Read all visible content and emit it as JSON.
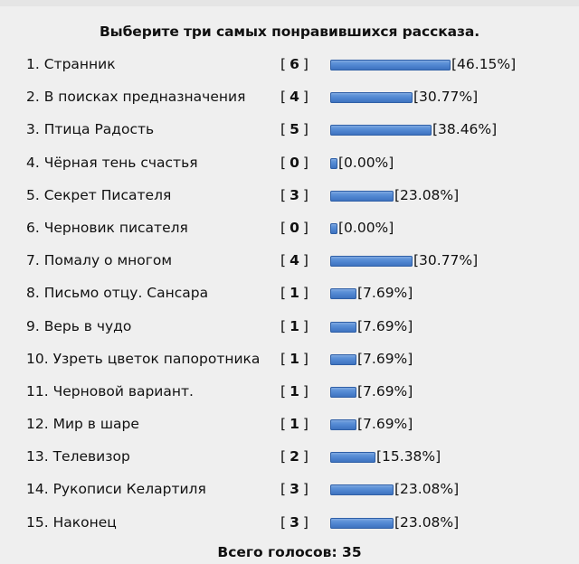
{
  "poll": {
    "title": "Выберите три самых понравившихся рассказа.",
    "total_label": "Всего голосов: 35",
    "bar_color": "#4a80cc",
    "items": [
      {
        "label": "1. Странник",
        "votes": "6",
        "percent": "[46.15%]"
      },
      {
        "label": "2. В поисках предназначения",
        "votes": "4",
        "percent": "[30.77%]"
      },
      {
        "label": "3. Птица Радость",
        "votes": "5",
        "percent": "[38.46%]"
      },
      {
        "label": "4. Чёрная тень счастья",
        "votes": "0",
        "percent": "[0.00%]"
      },
      {
        "label": "5. Секрет Писателя",
        "votes": "3",
        "percent": "[23.08%]"
      },
      {
        "label": "6. Черновик писателя",
        "votes": "0",
        "percent": "[0.00%]"
      },
      {
        "label": "7. Помалу о многом",
        "votes": "4",
        "percent": "[30.77%]"
      },
      {
        "label": "8. Письмо отцу. Сансара",
        "votes": "1",
        "percent": "[7.69%]"
      },
      {
        "label": "9. Верь в чудо",
        "votes": "1",
        "percent": "[7.69%]"
      },
      {
        "label": "10. Узреть цветок папоротника",
        "votes": "1",
        "percent": "[7.69%]"
      },
      {
        "label": "11. Черновой вариант.",
        "votes": "1",
        "percent": "[7.69%]"
      },
      {
        "label": "12. Мир в шаре",
        "votes": "1",
        "percent": "[7.69%]"
      },
      {
        "label": "13. Телевизор",
        "votes": "2",
        "percent": "[15.38%]"
      },
      {
        "label": "14. Рукописи Келартиля",
        "votes": "3",
        "percent": "[23.08%]"
      },
      {
        "label": "15. Наконец",
        "votes": "3",
        "percent": "[23.08%]"
      }
    ]
  },
  "chart_data": {
    "type": "bar",
    "orientation": "horizontal",
    "title": "Выберите три самых понравившихся рассказа.",
    "categories": [
      "Странник",
      "В поисках предназначения",
      "Птица Радость",
      "Чёрная тень счастья",
      "Секрет Писателя",
      "Черновик писателя",
      "Помалу о многом",
      "Письмо отцу. Сансара",
      "Верь в чудо",
      "Узреть цветок папоротника",
      "Черновой вариант.",
      "Мир в шаре",
      "Телевизор",
      "Рукописи Келартиля",
      "Наконец"
    ],
    "series": [
      {
        "name": "votes",
        "values": [
          6,
          4,
          5,
          0,
          3,
          0,
          4,
          1,
          1,
          1,
          1,
          1,
          2,
          3,
          3
        ]
      },
      {
        "name": "percent",
        "values": [
          46.15,
          30.77,
          38.46,
          0.0,
          23.08,
          0.0,
          30.77,
          7.69,
          7.69,
          7.69,
          7.69,
          7.69,
          15.38,
          23.08,
          23.08
        ]
      }
    ],
    "annotations": [
      "Всего голосов: 35"
    ],
    "total_votes": 35,
    "grid": false,
    "legend": "none"
  }
}
